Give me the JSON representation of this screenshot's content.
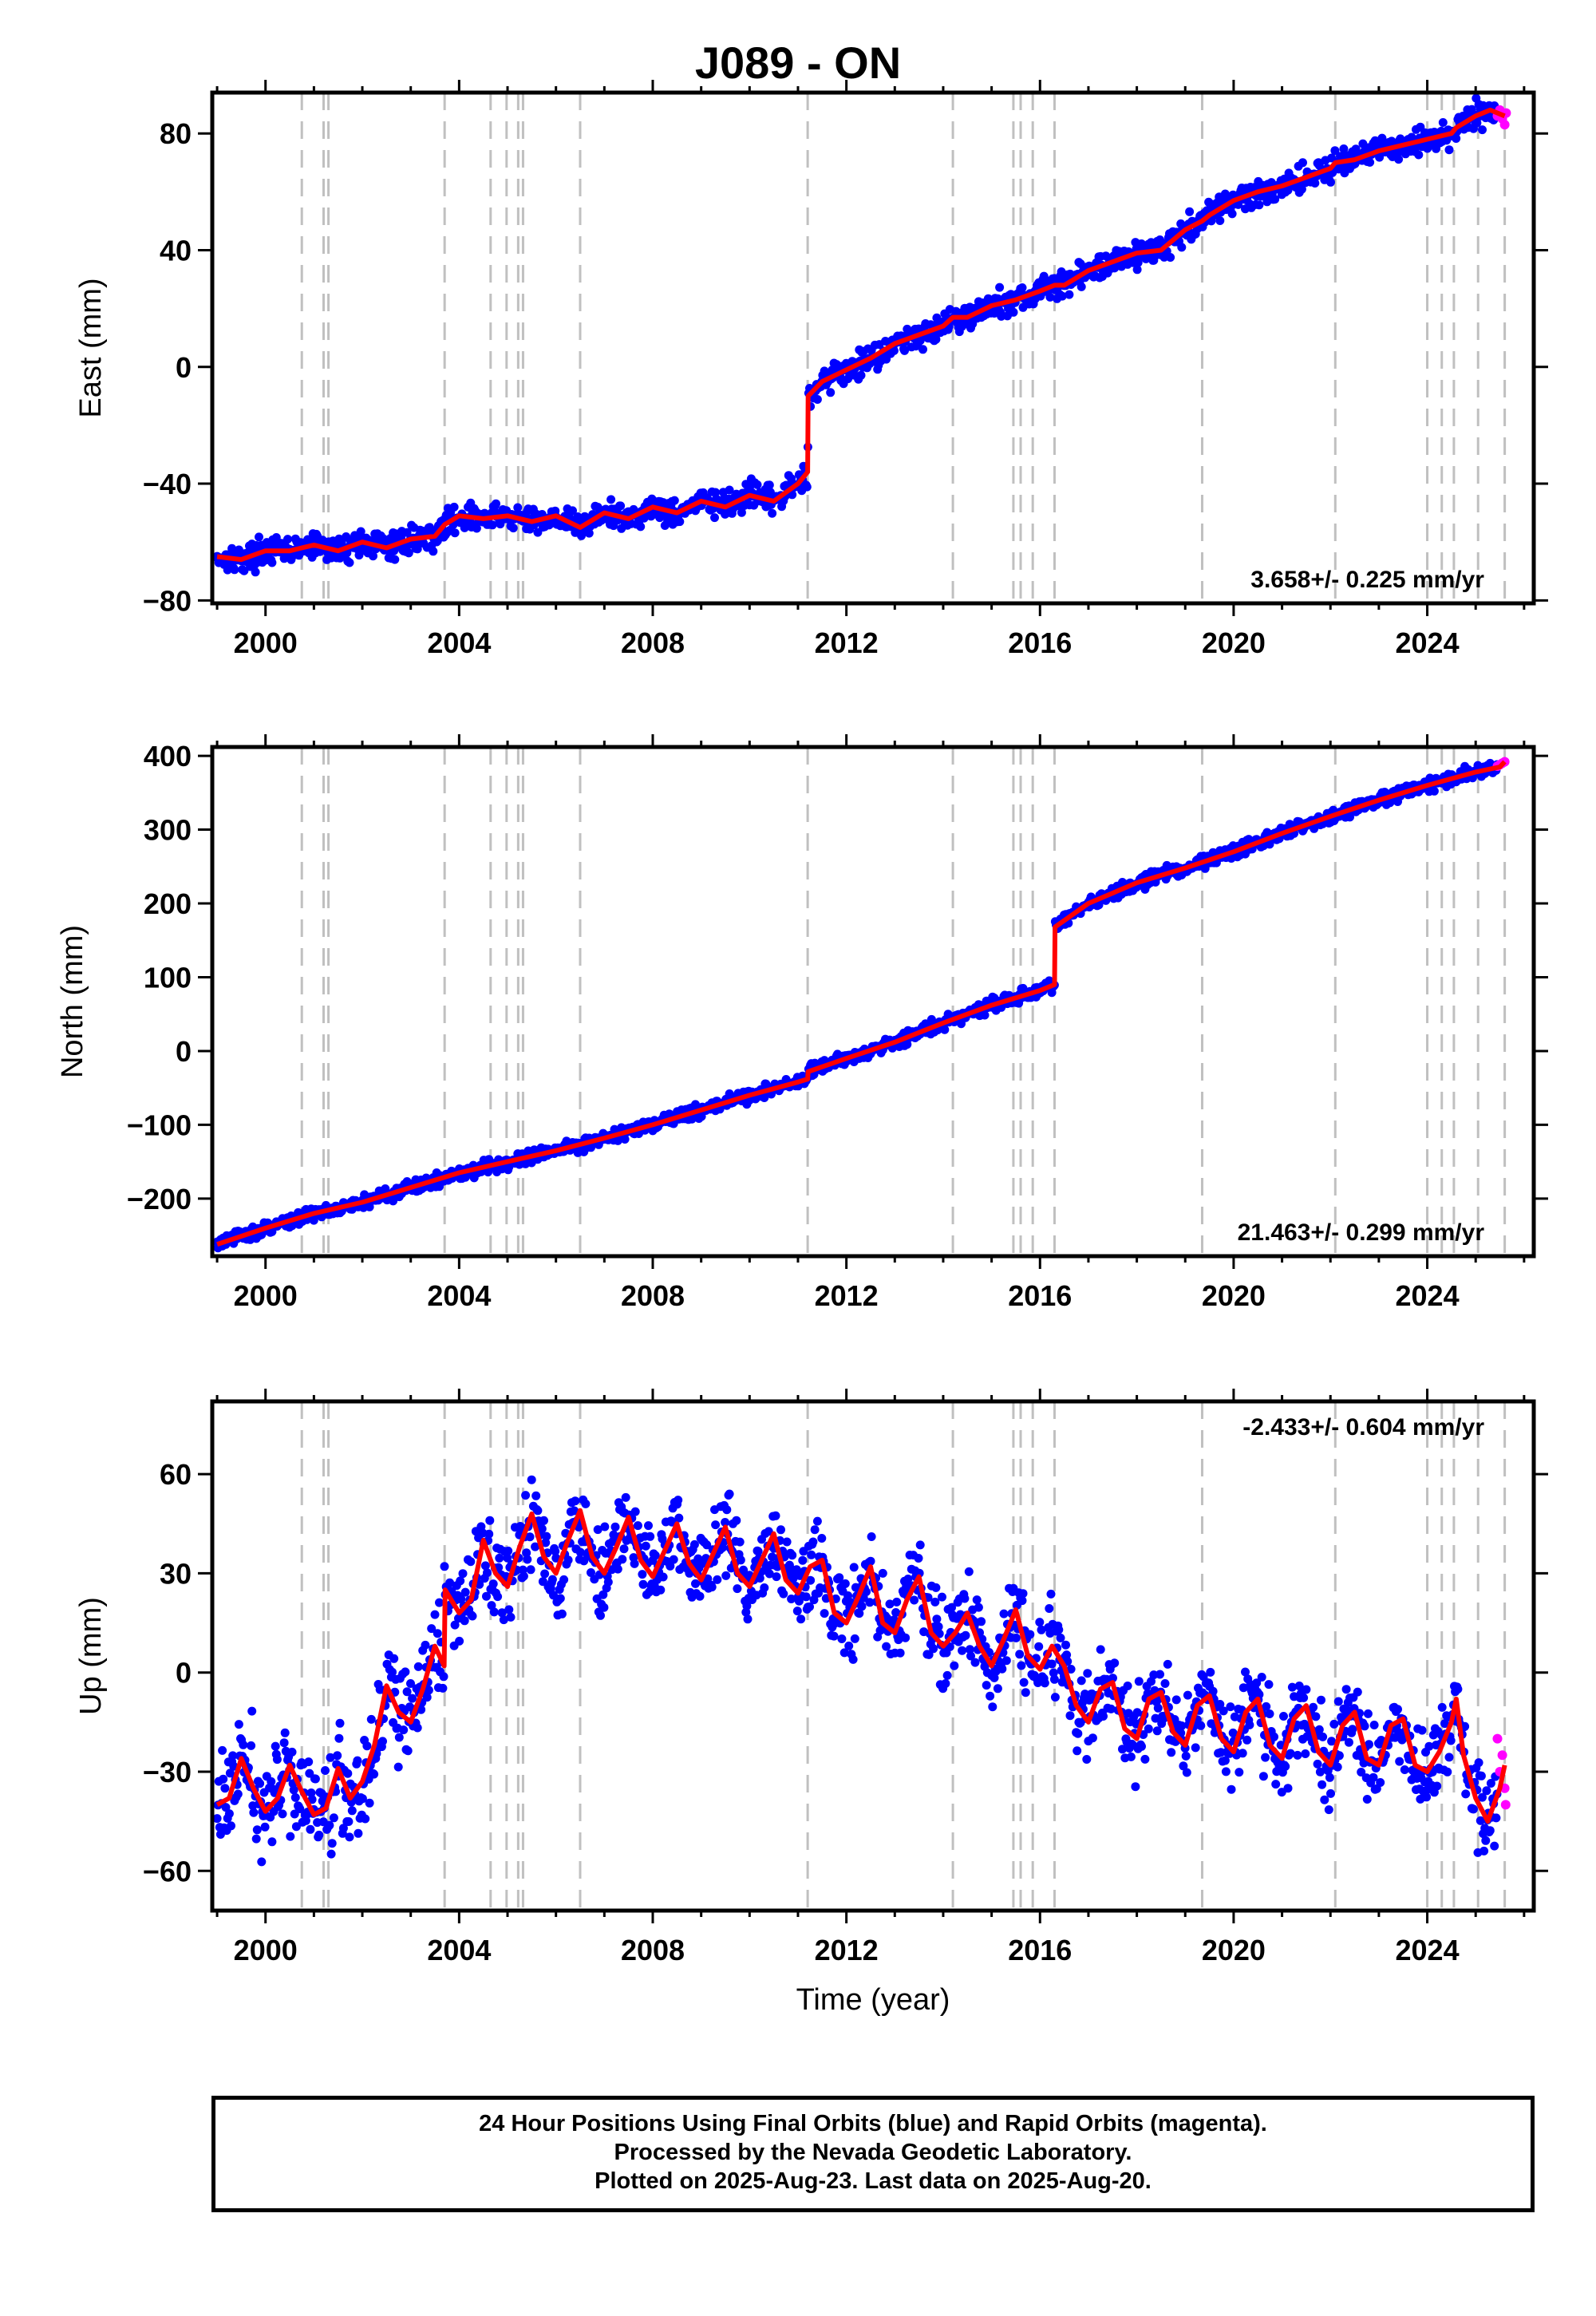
{
  "title": "J089 - ON",
  "xlabel": "Time (year)",
  "footer": {
    "line1": "24 Hour Positions Using Final Orbits (blue) and Rapid Orbits (magenta).",
    "line2": "Processed by the Nevada Geodetic Laboratory.",
    "line3": "Plotted on 2025-Aug-23. Last data on 2025-Aug-20."
  },
  "colors": {
    "final_orbits": "#0000ff",
    "rapid_orbits": "#ff00ff",
    "model": "#ff0000",
    "event_lines": "#c0c0c0"
  },
  "chart_data": [
    {
      "type": "scatter",
      "ylabel": "East (mm)",
      "rate_text": "3.658+/- 0.225 mm/yr",
      "xlim": [
        1998.9,
        2026.2
      ],
      "ylim": [
        -81,
        94
      ],
      "xticks": [
        2000,
        2004,
        2008,
        2012,
        2016,
        2020,
        2024
      ],
      "yticks": [
        -80,
        -40,
        0,
        40,
        80
      ],
      "event_lines": [
        2000.75,
        2001.2,
        2001.3,
        2003.7,
        2004.65,
        2004.98,
        2005.22,
        2005.32,
        2006.5,
        2011.2,
        2014.2,
        2015.45,
        2015.6,
        2015.85,
        2016.3,
        2019.35,
        2022.1,
        2024.0,
        2024.3,
        2024.55,
        2025.05,
        2025.6
      ],
      "series": [
        {
          "name": "Model",
          "x": [
            1999.0,
            1999.5,
            2000.0,
            2000.5,
            2000.75,
            2001.0,
            2001.5,
            2002.0,
            2002.5,
            2003.0,
            2003.5,
            2003.7,
            2004.0,
            2004.5,
            2005.0,
            2005.5,
            2006.0,
            2006.5,
            2007.0,
            2007.5,
            2008.0,
            2008.5,
            2009.0,
            2009.5,
            2010.0,
            2010.5,
            2011.0,
            2011.2,
            2011.21,
            2011.5,
            2012.0,
            2012.5,
            2013.0,
            2013.5,
            2014.0,
            2014.2,
            2014.5,
            2015.0,
            2015.5,
            2016.0,
            2016.3,
            2016.5,
            2017.0,
            2017.5,
            2018.0,
            2018.5,
            2019.0,
            2019.35,
            2019.5,
            2020.0,
            2020.5,
            2021.0,
            2021.5,
            2022.0,
            2022.1,
            2022.5,
            2023.0,
            2023.5,
            2024.0,
            2024.5,
            2024.6,
            2025.0,
            2025.3,
            2025.6
          ],
          "y": [
            -65,
            -66,
            -63,
            -63,
            -62,
            -61,
            -63,
            -60,
            -62,
            -59,
            -58,
            -54,
            -51,
            -52,
            -51,
            -53,
            -51,
            -55,
            -50,
            -52,
            -48,
            -50,
            -46,
            -48,
            -44,
            -46,
            -40,
            -36,
            -10,
            -5,
            -1,
            3,
            8,
            11,
            14,
            17,
            17,
            21,
            23,
            26,
            28,
            28,
            33,
            36,
            39,
            40,
            47,
            50,
            52,
            57,
            60,
            62,
            65,
            68,
            70,
            71,
            74,
            76,
            78,
            80,
            82,
            86,
            88,
            86
          ]
        },
        {
          "name": "Rapid Orbits",
          "x": [
            2025.45,
            2025.5,
            2025.55,
            2025.6,
            2025.63
          ],
          "y": [
            86,
            88,
            85,
            83,
            87
          ]
        }
      ]
    },
    {
      "type": "scatter",
      "ylabel": "North (mm)",
      "rate_text": "21.463+/- 0.299 mm/yr",
      "xlim": [
        1998.9,
        2026.2
      ],
      "ylim": [
        -278,
        412
      ],
      "xticks": [
        2000,
        2004,
        2008,
        2012,
        2016,
        2020,
        2024
      ],
      "yticks": [
        -200,
        -100,
        0,
        100,
        200,
        300,
        400
      ],
      "event_lines": [
        2000.75,
        2001.2,
        2001.3,
        2003.7,
        2004.65,
        2004.98,
        2005.22,
        2005.32,
        2006.5,
        2011.2,
        2014.2,
        2015.45,
        2015.6,
        2015.85,
        2016.3,
        2019.35,
        2022.1,
        2024.0,
        2024.3,
        2024.55,
        2025.05,
        2025.6
      ],
      "series": [
        {
          "name": "Model",
          "x": [
            1999.0,
            2000.0,
            2001.0,
            2002.0,
            2003.0,
            2004.0,
            2005.0,
            2006.0,
            2007.0,
            2008.0,
            2009.0,
            2010.0,
            2011.0,
            2011.2,
            2011.21,
            2012.0,
            2013.0,
            2014.0,
            2015.0,
            2016.0,
            2016.3,
            2016.31,
            2017.0,
            2018.0,
            2019.0,
            2020.0,
            2021.0,
            2022.0,
            2023.0,
            2024.0,
            2025.0,
            2025.5,
            2025.6
          ],
          "y": [
            -262,
            -240,
            -220,
            -205,
            -185,
            -165,
            -150,
            -135,
            -118,
            -100,
            -80,
            -60,
            -42,
            -38,
            -28,
            -10,
            12,
            38,
            62,
            82,
            90,
            168,
            200,
            228,
            248,
            270,
            295,
            318,
            340,
            360,
            378,
            385,
            392
          ]
        },
        {
          "name": "Rapid Orbits",
          "x": [
            2025.45,
            2025.5,
            2025.55,
            2025.6
          ],
          "y": [
            386,
            388,
            390,
            392
          ]
        }
      ]
    },
    {
      "type": "scatter",
      "ylabel": "Up (mm)",
      "rate_text": "-2.433+/- 0.604 mm/yr",
      "xlim": [
        1998.9,
        2026.2
      ],
      "ylim": [
        -72,
        82
      ],
      "xticks": [
        2000,
        2004,
        2008,
        2012,
        2016,
        2020,
        2024
      ],
      "yticks": [
        -60,
        -30,
        0,
        30,
        60
      ],
      "event_lines": [
        2000.75,
        2001.2,
        2001.3,
        2003.7,
        2004.65,
        2004.98,
        2005.22,
        2005.32,
        2006.5,
        2011.2,
        2014.2,
        2015.45,
        2015.6,
        2015.85,
        2016.3,
        2019.35,
        2022.1,
        2024.0,
        2024.3,
        2024.55,
        2025.05,
        2025.6
      ],
      "series": [
        {
          "name": "Model",
          "x": [
            1999.0,
            1999.25,
            1999.5,
            1999.75,
            2000.0,
            2000.25,
            2000.5,
            2000.75,
            2001.0,
            2001.25,
            2001.5,
            2001.75,
            2002.0,
            2002.25,
            2002.5,
            2002.75,
            2003.0,
            2003.25,
            2003.5,
            2003.69,
            2003.71,
            2004.0,
            2004.25,
            2004.5,
            2004.75,
            2005.0,
            2005.25,
            2005.5,
            2005.75,
            2006.0,
            2006.25,
            2006.5,
            2006.75,
            2007.0,
            2007.25,
            2007.5,
            2007.75,
            2008.0,
            2008.25,
            2008.5,
            2008.75,
            2009.0,
            2009.25,
            2009.5,
            2009.75,
            2010.0,
            2010.25,
            2010.5,
            2010.75,
            2011.0,
            2011.25,
            2011.5,
            2011.75,
            2012.0,
            2012.25,
            2012.5,
            2012.75,
            2013.0,
            2013.25,
            2013.5,
            2013.75,
            2014.0,
            2014.25,
            2014.5,
            2014.75,
            2015.0,
            2015.25,
            2015.5,
            2015.75,
            2016.0,
            2016.25,
            2016.5,
            2016.75,
            2017.0,
            2017.25,
            2017.5,
            2017.75,
            2018.0,
            2018.25,
            2018.5,
            2018.75,
            2019.0,
            2019.25,
            2019.5,
            2019.75,
            2020.0,
            2020.25,
            2020.5,
            2020.75,
            2021.0,
            2021.25,
            2021.5,
            2021.75,
            2022.0,
            2022.25,
            2022.5,
            2022.75,
            2023.0,
            2023.25,
            2023.5,
            2023.75,
            2024.0,
            2024.25,
            2024.5,
            2024.6,
            2024.75,
            2025.0,
            2025.25,
            2025.5,
            2025.6
          ],
          "y": [
            -40,
            -38,
            -26,
            -35,
            -42,
            -38,
            -28,
            -36,
            -43,
            -41,
            -29,
            -38,
            -33,
            -22,
            -4,
            -12,
            -15,
            -5,
            8,
            2,
            25,
            18,
            22,
            40,
            30,
            26,
            38,
            48,
            35,
            30,
            40,
            49,
            35,
            30,
            38,
            47,
            34,
            29,
            37,
            45,
            33,
            28,
            36,
            44,
            30,
            26,
            34,
            42,
            28,
            24,
            32,
            34,
            18,
            15,
            23,
            32,
            15,
            12,
            22,
            29,
            12,
            8,
            12,
            18,
            8,
            2,
            10,
            19,
            5,
            1,
            8,
            2,
            -10,
            -15,
            -5,
            -3,
            -17,
            -20,
            -8,
            -6,
            -18,
            -22,
            -10,
            -7,
            -20,
            -24,
            -12,
            -8,
            -22,
            -26,
            -14,
            -10,
            -24,
            -28,
            -16,
            -12,
            -26,
            -28,
            -16,
            -14,
            -28,
            -30,
            -24,
            -15,
            -8,
            -25,
            -38,
            -45,
            -35,
            -28
          ]
        },
        {
          "name": "Rapid Orbits",
          "x": [
            2025.45,
            2025.5,
            2025.55,
            2025.6,
            2025.62
          ],
          "y": [
            -20,
            -30,
            -25,
            -35,
            -40
          ]
        }
      ]
    }
  ]
}
